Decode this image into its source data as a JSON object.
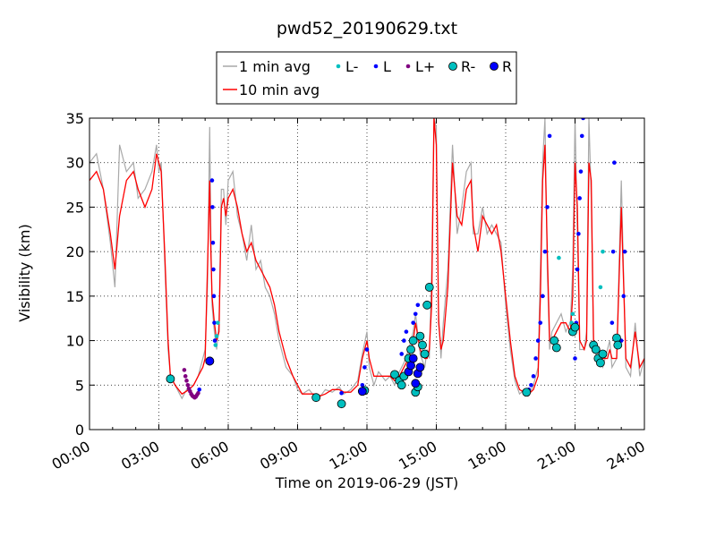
{
  "chart_data": {
    "type": "line",
    "title": "pwd52_20190629.txt",
    "xlabel": "Time on 2019-06-29 (JST)",
    "ylabel": "Visibility (km)",
    "xlim": [
      0,
      24
    ],
    "ylim": [
      0,
      35
    ],
    "x_ticks": [
      "00:00",
      "03:00",
      "06:00",
      "09:00",
      "12:00",
      "15:00",
      "18:00",
      "21:00",
      "24:00"
    ],
    "x_tick_values": [
      0,
      3,
      6,
      9,
      12,
      15,
      18,
      21,
      24
    ],
    "y_ticks": [
      "0",
      "5",
      "10",
      "15",
      "20",
      "25",
      "30",
      "35"
    ],
    "y_tick_values": [
      0,
      5,
      10,
      15,
      20,
      25,
      30,
      35
    ],
    "grid": true,
    "legend_position": "top-center",
    "legend": [
      {
        "label": "1 min avg",
        "kind": "line",
        "color": "#a9a9a9"
      },
      {
        "label": "10 min avg",
        "kind": "line",
        "color": "#ff0000"
      },
      {
        "label": "L-",
        "kind": "small-dot",
        "color": "#00bfbf"
      },
      {
        "label": "L",
        "kind": "small-dot",
        "color": "#0000ff"
      },
      {
        "label": "L+",
        "kind": "small-dot",
        "color": "#800080"
      },
      {
        "label": "R-",
        "kind": "big-dot",
        "color": "#00bfbf"
      },
      {
        "label": "R",
        "kind": "big-dot",
        "color": "#0000ff"
      }
    ],
    "series": [
      {
        "name": "10 min avg",
        "color": "#ff0000",
        "x": [
          0,
          0.3,
          0.6,
          0.9,
          1.1,
          1.3,
          1.6,
          1.9,
          2.1,
          2.4,
          2.7,
          2.9,
          3.0,
          3.1,
          3.25,
          3.4,
          3.5,
          3.7,
          4.0,
          4.3,
          4.5,
          4.7,
          4.9,
          5.0,
          5.1,
          5.2,
          5.25,
          5.3,
          5.4,
          5.5,
          5.6,
          5.7,
          5.8,
          5.9,
          6.0,
          6.2,
          6.4,
          6.6,
          6.8,
          7.0,
          7.2,
          7.4,
          7.6,
          7.8,
          8.0,
          8.2,
          8.5,
          8.8,
          9.0,
          9.2,
          9.5,
          9.8,
          10.0,
          10.2,
          10.5,
          10.8,
          11.0,
          11.3,
          11.6,
          11.8,
          12.0,
          12.1,
          12.3,
          12.5,
          12.8,
          13.0,
          13.2,
          13.4,
          13.6,
          13.8,
          14.0,
          14.1,
          14.3,
          14.5,
          14.6,
          14.7,
          14.8,
          14.9,
          15.0,
          15.1,
          15.2,
          15.3,
          15.5,
          15.7,
          15.9,
          16.1,
          16.3,
          16.5,
          16.6,
          16.8,
          17.0,
          17.2,
          17.4,
          17.6,
          17.8,
          18.0,
          18.2,
          18.4,
          18.6,
          18.8,
          19.0,
          19.2,
          19.4,
          19.5,
          19.6,
          19.7,
          19.8,
          19.9,
          20.0,
          20.2,
          20.4,
          20.6,
          20.8,
          20.9,
          21.0,
          21.1,
          21.2,
          21.4,
          21.5,
          21.6,
          21.7,
          21.8,
          22.0,
          22.2,
          22.4,
          22.5,
          22.6,
          22.8,
          23.0,
          23.2,
          23.4,
          23.6,
          23.8,
          24.0
        ],
        "values": [
          28,
          29,
          27,
          22,
          18,
          24,
          28,
          29,
          27,
          25,
          27,
          31,
          30,
          29,
          20,
          10,
          6,
          5,
          4,
          4.5,
          5,
          6,
          7,
          8,
          18,
          28,
          20,
          15,
          12,
          10,
          11,
          25,
          26,
          24,
          26,
          27,
          25,
          22,
          20,
          21,
          19,
          18,
          17,
          16,
          14,
          11,
          8,
          6,
          5,
          4,
          4,
          4,
          3.8,
          4,
          4.5,
          4.5,
          4.2,
          4.2,
          5,
          8,
          10,
          8,
          6,
          6,
          6,
          6,
          5.5,
          6,
          7,
          8,
          10,
          12,
          9,
          8,
          8,
          9,
          14,
          35,
          32,
          12,
          9,
          10,
          16,
          30,
          24,
          23,
          27,
          28,
          23,
          20,
          24,
          23,
          22,
          23,
          20,
          15,
          10,
          6,
          4.5,
          4.2,
          4,
          4.5,
          6,
          15,
          28,
          32,
          20,
          10,
          10,
          11,
          12,
          12,
          11,
          15,
          30,
          25,
          10,
          9,
          10,
          30,
          28,
          10,
          9,
          8,
          8,
          9,
          8,
          8,
          25,
          8,
          7,
          11,
          7,
          8
        ]
      },
      {
        "name": "1 min avg",
        "color": "#a9a9a9",
        "x": [
          0,
          0.3,
          0.6,
          0.9,
          1.1,
          1.3,
          1.6,
          1.9,
          2.1,
          2.4,
          2.7,
          2.9,
          3.0,
          3.1,
          3.25,
          3.4,
          3.5,
          3.7,
          4.0,
          4.3,
          4.5,
          4.7,
          4.9,
          5.0,
          5.1,
          5.2,
          5.25,
          5.3,
          5.4,
          5.5,
          5.6,
          5.7,
          5.8,
          5.9,
          6.0,
          6.2,
          6.4,
          6.6,
          6.8,
          7.0,
          7.2,
          7.4,
          7.6,
          7.8,
          8.0,
          8.2,
          8.5,
          8.8,
          9.0,
          9.2,
          9.5,
          9.8,
          10.0,
          10.2,
          10.5,
          10.8,
          11.0,
          11.3,
          11.6,
          11.8,
          12.0,
          12.1,
          12.3,
          12.5,
          12.8,
          13.0,
          13.2,
          13.4,
          13.6,
          13.8,
          14.0,
          14.1,
          14.3,
          14.5,
          14.6,
          14.7,
          14.8,
          14.9,
          15.0,
          15.1,
          15.2,
          15.3,
          15.5,
          15.7,
          15.9,
          16.1,
          16.3,
          16.5,
          16.6,
          16.8,
          17.0,
          17.2,
          17.4,
          17.6,
          17.8,
          18.0,
          18.2,
          18.4,
          18.6,
          18.8,
          19.0,
          19.2,
          19.4,
          19.5,
          19.6,
          19.7,
          19.8,
          19.9,
          20.0,
          20.2,
          20.4,
          20.6,
          20.8,
          20.9,
          21.0,
          21.1,
          21.2,
          21.4,
          21.5,
          21.6,
          21.7,
          21.8,
          22.0,
          22.2,
          22.4,
          22.5,
          22.6,
          22.8,
          23.0,
          23.2,
          23.4,
          23.6,
          23.8,
          24.0
        ],
        "values": [
          30,
          31,
          27,
          21,
          16,
          32,
          29,
          30,
          26,
          27,
          29,
          32,
          29,
          30,
          19,
          9,
          6,
          5,
          3.5,
          5,
          5,
          6,
          8,
          9,
          16,
          34,
          22,
          14,
          11,
          9,
          12,
          27,
          27,
          23,
          28,
          29,
          24,
          22,
          19,
          23,
          18,
          19,
          16,
          15,
          13,
          10,
          7,
          6,
          4.5,
          4,
          4.5,
          3.5,
          3.8,
          4.5,
          4.2,
          4.8,
          4,
          4.5,
          5.5,
          8.5,
          11,
          7,
          5,
          6.5,
          5.5,
          6,
          5,
          6.5,
          7.5,
          9,
          11,
          13,
          8.5,
          7,
          9,
          8,
          18,
          35,
          34,
          13,
          8,
          12,
          18,
          32,
          22,
          25,
          29,
          30,
          22,
          22,
          25,
          22,
          23,
          22,
          21,
          14,
          9,
          5.5,
          4,
          4.5,
          3.8,
          5,
          7,
          18,
          30,
          35,
          18,
          9,
          11,
          12,
          13,
          11,
          12,
          18,
          35,
          22,
          9,
          9,
          11,
          35,
          26,
          9,
          8,
          7,
          9,
          10,
          7,
          8,
          28,
          7,
          6,
          12,
          6,
          8
        ]
      }
    ],
    "markers": [
      {
        "name": "L+",
        "color": "#800080",
        "size": "small",
        "x": [
          4.1,
          4.15,
          4.2,
          4.25,
          4.3,
          4.35,
          4.4,
          4.45,
          4.5,
          4.55,
          4.6,
          4.65,
          4.7
        ],
        "y": [
          6.7,
          6.0,
          5.5,
          5.0,
          4.6,
          4.3,
          4.0,
          3.8,
          3.7,
          3.6,
          3.7,
          3.9,
          4.1
        ]
      },
      {
        "name": "L",
        "color": "#0000ff",
        "size": "small",
        "x": [
          4.75,
          5.3,
          5.32,
          5.34,
          5.36,
          5.38,
          5.4,
          5.42,
          10.9,
          11.8,
          11.9,
          12.0,
          13.5,
          13.6,
          13.7,
          14.0,
          14.1,
          14.2,
          19.0,
          19.1,
          19.2,
          19.3,
          19.4,
          19.5,
          19.6,
          19.7,
          19.8,
          19.9,
          21.0,
          21.05,
          21.1,
          21.15,
          21.2,
          21.25,
          21.3,
          21.35,
          22.6,
          22.65,
          22.7,
          23.0,
          23.1,
          23.15
        ],
        "y": [
          4.5,
          28,
          25,
          21,
          18,
          15,
          12,
          10,
          4.1,
          5,
          7,
          9,
          8.5,
          10,
          11,
          12,
          13,
          14,
          4.5,
          5,
          6,
          8,
          10,
          12,
          15,
          20,
          25,
          33,
          8,
          12,
          18,
          22,
          26,
          29,
          33,
          35,
          12,
          20,
          30,
          10,
          15,
          20
        ]
      },
      {
        "name": "L-",
        "color": "#00bfbf",
        "size": "small",
        "x": [
          5.45,
          5.5,
          5.55,
          20.3,
          20.8,
          20.85,
          20.9,
          22.1,
          22.2
        ],
        "y": [
          9.5,
          10.5,
          12,
          19.3,
          11,
          12,
          13,
          16,
          20
        ]
      },
      {
        "name": "R-",
        "color": "#00bfbf",
        "size": "big",
        "x": [
          3.5,
          5.2,
          9.8,
          10.9,
          11.9,
          13.2,
          13.4,
          13.5,
          13.6,
          13.8,
          13.9,
          14.0,
          14.1,
          14.2,
          14.3,
          14.4,
          14.5,
          14.6,
          14.7,
          18.9,
          20.1,
          20.2,
          20.9,
          21.0,
          21.8,
          21.9,
          22.0,
          22.1,
          22.2,
          22.8,
          22.85
        ],
        "y": [
          5.7,
          7.7,
          3.6,
          2.9,
          4.4,
          6.2,
          5.5,
          5.0,
          6.0,
          8.0,
          9.0,
          10.0,
          4.2,
          4.8,
          10.5,
          9.5,
          8.5,
          14,
          16,
          4.2,
          10,
          9.2,
          11.0,
          11.5,
          9.5,
          9.0,
          8.0,
          7.5,
          8.5,
          10.3,
          9.5
        ]
      },
      {
        "name": "R",
        "color": "#0000ff",
        "size": "big",
        "x": [
          5.2,
          11.8,
          13.8,
          13.9,
          14.0,
          14.1,
          14.2,
          14.3
        ],
        "y": [
          7.7,
          4.3,
          6.5,
          7.2,
          8.0,
          5.2,
          6.3,
          7.0
        ]
      }
    ]
  }
}
